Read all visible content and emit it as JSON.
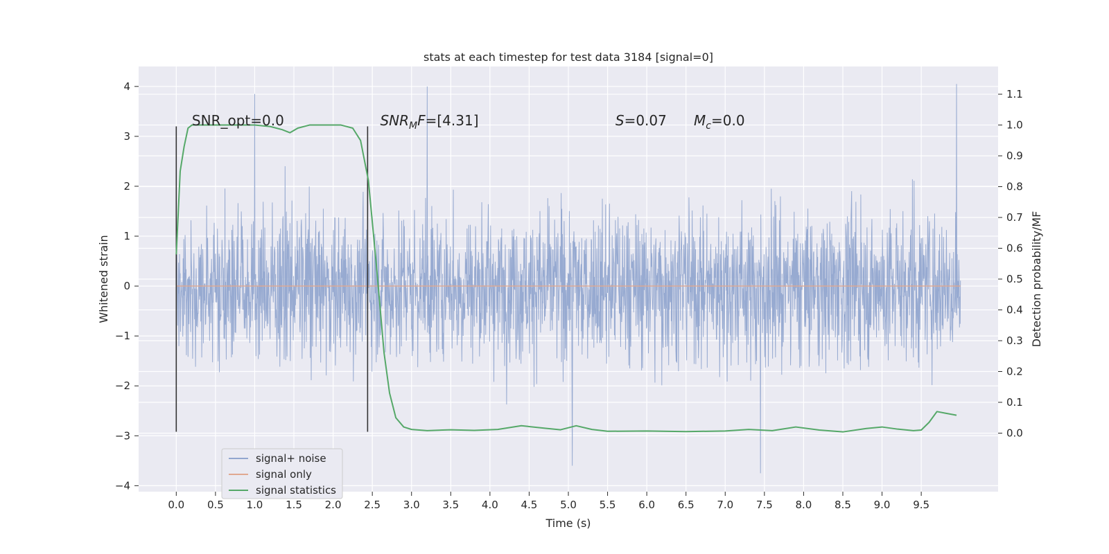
{
  "chart_data": {
    "type": "line",
    "title": "stats at each timestep for test data 3184 [signal=0]",
    "xlabel": "Time (s)",
    "ylabel": "Whitened strain",
    "y2label": "Detection probability/MF",
    "xlim": [
      -0.48,
      10.48
    ],
    "ylim": [
      -4.12,
      4.4
    ],
    "y2lim": [
      -0.19,
      1.19
    ],
    "x_ticks": [
      0.0,
      0.5,
      1.0,
      1.5,
      2.0,
      2.5,
      3.0,
      3.5,
      4.0,
      4.5,
      5.0,
      5.5,
      6.0,
      6.5,
      7.0,
      7.5,
      8.0,
      8.5,
      9.0,
      9.5
    ],
    "x_tick_labels": [
      "0.0",
      "0.5",
      "1.0",
      "1.5",
      "2.0",
      "2.5",
      "3.0",
      "3.5",
      "4.0",
      "4.5",
      "5.0",
      "5.5",
      "6.0",
      "6.5",
      "7.0",
      "7.5",
      "8.0",
      "8.5",
      "9.0",
      "9.5"
    ],
    "y_ticks": [
      4,
      3,
      2,
      1,
      0,
      -1,
      -2,
      -3,
      -4
    ],
    "y_tick_labels": [
      "4",
      "3",
      "2",
      "1",
      "0",
      "−1",
      "−2",
      "−3",
      "−4"
    ],
    "y2_ticks": [
      1.1,
      1.0,
      0.9,
      0.8,
      0.7,
      0.6,
      0.5,
      0.4,
      0.3,
      0.2,
      0.1,
      0.0
    ],
    "y2_tick_labels": [
      "1.1",
      "1.0",
      "0.9",
      "0.8",
      "0.7",
      "0.6",
      "0.5",
      "0.4",
      "0.3",
      "0.2",
      "0.1",
      "0.0"
    ],
    "grid": true,
    "legend_position": "lower-left",
    "series": [
      {
        "name": "signal+ noise",
        "color": "#92a6cf",
        "axis": "left",
        "description_points": [
          [
            0.0,
            1.7
          ],
          [
            1.0,
            3.85
          ],
          [
            3.2,
            4.0
          ],
          [
            5.05,
            -3.6
          ],
          [
            7.45,
            -3.75
          ],
          [
            9.95,
            4.05
          ]
        ],
        "x_range": [
          0.0,
          10.0
        ],
        "typical_amplitude": 2.5
      },
      {
        "name": "signal only",
        "color": "#e0a890",
        "axis": "left",
        "x": [
          0.0,
          10.0
        ],
        "y": [
          0.0,
          0.0
        ]
      },
      {
        "name": "signal statistics",
        "color": "#55a868",
        "axis": "right",
        "x": [
          0.0,
          0.05,
          0.1,
          0.15,
          0.2,
          0.3,
          0.5,
          0.8,
          1.0,
          1.2,
          1.35,
          1.45,
          1.55,
          1.7,
          1.9,
          2.1,
          2.25,
          2.35,
          2.45,
          2.55,
          2.65,
          2.72,
          2.8,
          2.9,
          3.0,
          3.2,
          3.5,
          3.8,
          4.1,
          4.4,
          4.7,
          4.9,
          5.1,
          5.3,
          5.5,
          6.0,
          6.5,
          7.0,
          7.3,
          7.6,
          7.9,
          8.2,
          8.5,
          8.8,
          9.0,
          9.2,
          9.4,
          9.5,
          9.6,
          9.7,
          9.8,
          9.95
        ],
        "y": [
          0.58,
          0.85,
          0.93,
          0.99,
          1.0,
          1.0,
          1.0,
          1.0,
          1.0,
          0.995,
          0.985,
          0.975,
          0.99,
          1.0,
          1.0,
          1.0,
          0.99,
          0.95,
          0.82,
          0.55,
          0.26,
          0.13,
          0.05,
          0.02,
          0.012,
          0.008,
          0.011,
          0.009,
          0.012,
          0.024,
          0.016,
          0.011,
          0.024,
          0.012,
          0.006,
          0.007,
          0.005,
          0.007,
          0.012,
          0.008,
          0.02,
          0.01,
          0.004,
          0.015,
          0.02,
          0.013,
          0.008,
          0.01,
          0.035,
          0.07,
          0.065,
          0.058
        ]
      }
    ],
    "vertical_lines": [
      {
        "x": 0.0,
        "y_top": 3.2,
        "y_bottom": -2.92,
        "color": "#333333"
      },
      {
        "x": 2.44,
        "y_top": 3.2,
        "y_bottom": -2.92,
        "color": "#333333"
      }
    ],
    "annotations": [
      {
        "id": "snr-opt",
        "label": "SNR_opt=0.0",
        "x": 0.2,
        "y": 3.22
      },
      {
        "id": "snr-mf",
        "label_base": "SNR",
        "label_sub": "M",
        "label_italic2": "F",
        "label_rest": "=[4.31]",
        "x": 2.6,
        "y": 3.22
      },
      {
        "id": "s-val",
        "label_italic": "S",
        "label_rest": "=0.07",
        "x": 5.6,
        "y": 3.22
      },
      {
        "id": "mc-val",
        "label_italic": "M",
        "label_sub": "c",
        "label_rest": "=0.0",
        "x": 6.6,
        "y": 3.22
      }
    ]
  },
  "legend": {
    "items": [
      {
        "label": "signal+ noise",
        "color": "#92a6cf"
      },
      {
        "label": "signal only",
        "color": "#e0a890"
      },
      {
        "label": "signal statistics",
        "color": "#55a868"
      }
    ]
  },
  "colors": {
    "plot_background": "#eaeaf2",
    "grid": "#ffffff",
    "text": "#262626"
  }
}
